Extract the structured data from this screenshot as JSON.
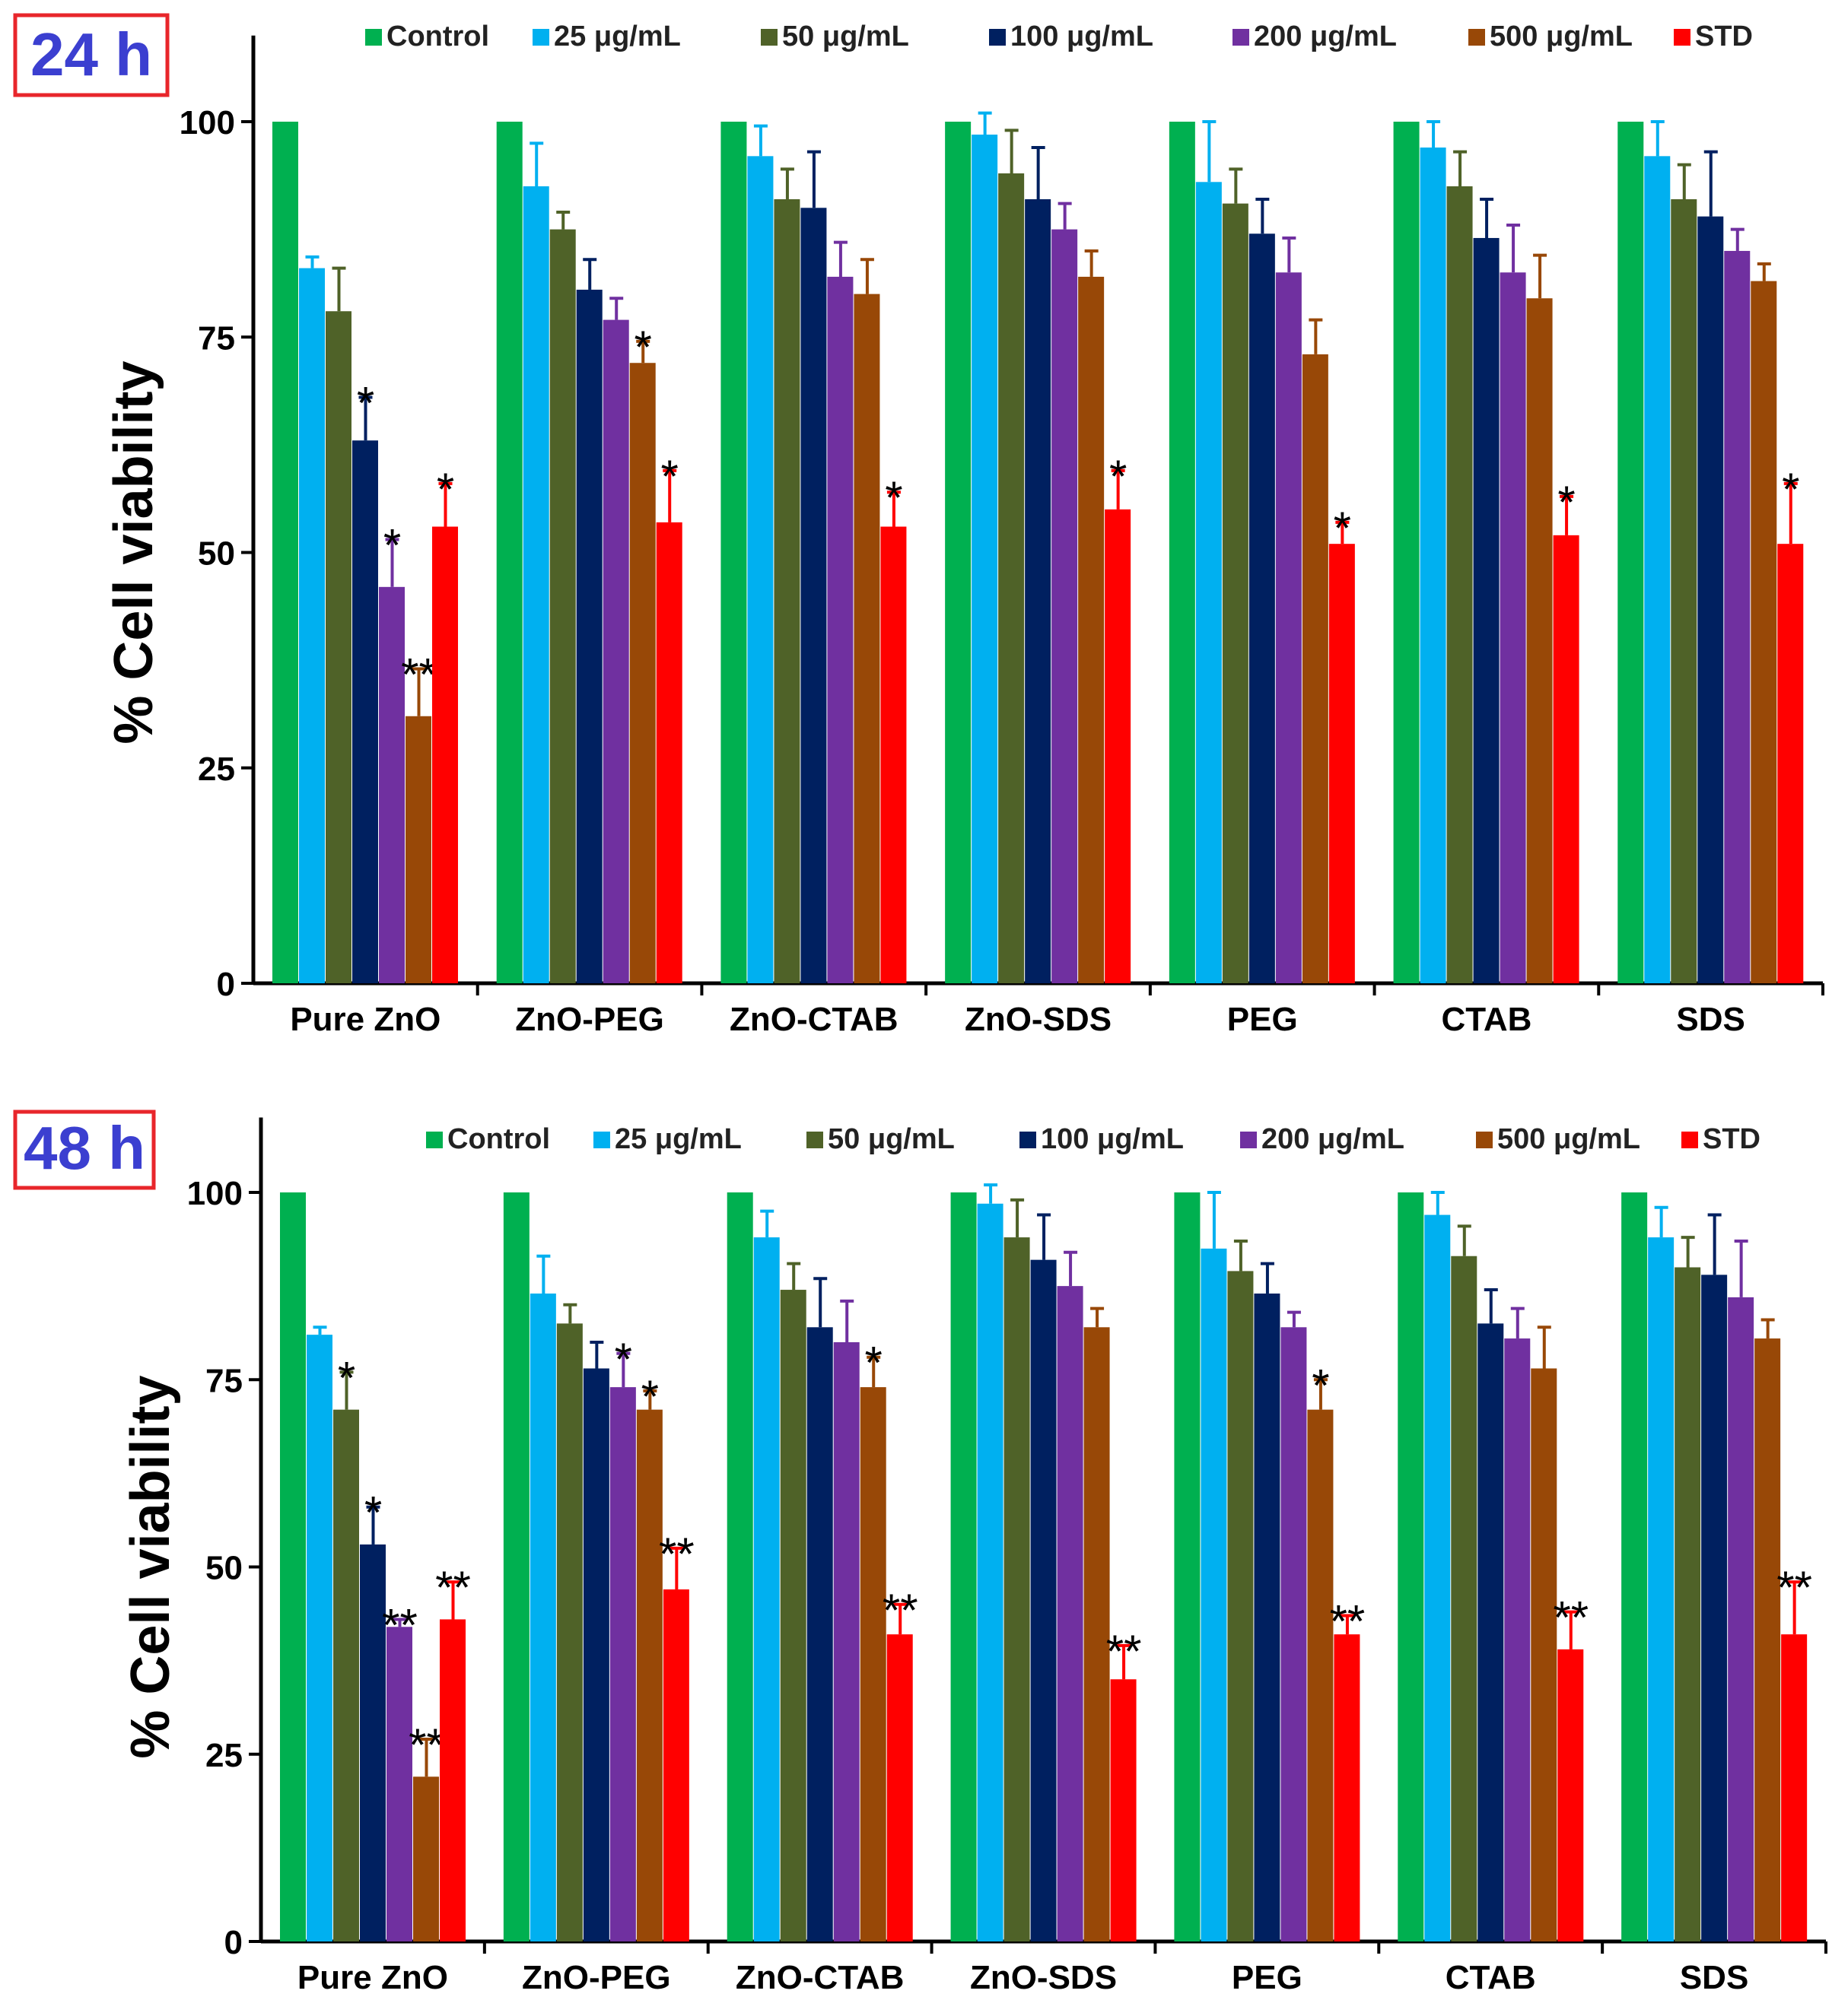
{
  "chart_data": [
    {
      "type": "bar",
      "label": "24 h",
      "ylabel": "% Cell viability",
      "ylim": [
        0,
        110
      ],
      "yticks": [
        0,
        25,
        50,
        75,
        100
      ],
      "categories": [
        "Pure ZnO",
        "ZnO-PEG",
        "ZnO-CTAB",
        "ZnO-SDS",
        "PEG",
        "CTAB",
        "SDS"
      ],
      "series": [
        {
          "name": "Control",
          "color": "#00b050",
          "values": [
            100,
            100,
            100,
            100,
            100,
            100,
            100
          ],
          "errors": [
            0,
            0,
            0,
            0,
            0,
            0,
            0
          ],
          "sig": [
            "",
            "",
            "",
            "",
            "",
            "",
            ""
          ]
        },
        {
          "name": "25 μg/mL",
          "color": "#00b0f0",
          "values": [
            83,
            92.5,
            96,
            98.5,
            93,
            97,
            96
          ],
          "errors": [
            1.3,
            5,
            3.5,
            2.5,
            7,
            3,
            4
          ],
          "sig": [
            "",
            "",
            "",
            "",
            "",
            "",
            ""
          ]
        },
        {
          "name": "50 μg/mL",
          "color": "#4f6228",
          "values": [
            78,
            87.5,
            91,
            94,
            90.5,
            92.5,
            91
          ],
          "errors": [
            5,
            2,
            3.5,
            5,
            4,
            4,
            4
          ],
          "sig": [
            "",
            "",
            "",
            "",
            "",
            "",
            ""
          ]
        },
        {
          "name": "100 μg/mL",
          "color": "#002060",
          "values": [
            63,
            80.5,
            90,
            91,
            87,
            86.5,
            89
          ],
          "errors": [
            5,
            3.5,
            6.5,
            6,
            4,
            4.5,
            7.5
          ],
          "sig": [
            "*",
            "",
            "",
            "",
            "",
            "",
            ""
          ]
        },
        {
          "name": "200 μg/mL",
          "color": "#7030a0",
          "values": [
            46,
            77,
            82,
            87.5,
            82.5,
            82.5,
            85
          ],
          "errors": [
            5.5,
            2.5,
            4,
            3,
            4,
            5.5,
            2.5
          ],
          "sig": [
            "*",
            "",
            "",
            "",
            "",
            "",
            ""
          ]
        },
        {
          "name": "500 μg/mL",
          "color": "#984807",
          "values": [
            31,
            72,
            80,
            82,
            73,
            79.5,
            81.5
          ],
          "errors": [
            5.5,
            2.5,
            4,
            3,
            4,
            5,
            2
          ],
          "sig": [
            "**",
            "*",
            "",
            "",
            "",
            "",
            ""
          ]
        },
        {
          "name": "STD",
          "color": "#ff0000",
          "values": [
            53,
            53.5,
            53,
            55,
            51,
            52,
            51
          ],
          "errors": [
            5,
            6,
            4,
            4.5,
            2.5,
            4.5,
            7
          ],
          "sig": [
            "*",
            "*",
            "*",
            "*",
            "*",
            "*",
            "*"
          ]
        }
      ]
    },
    {
      "type": "bar",
      "label": "48 h",
      "ylabel": "% Cell viability",
      "ylim": [
        0,
        110
      ],
      "yticks": [
        0,
        25,
        50,
        75,
        100
      ],
      "categories": [
        "Pure ZnO",
        "ZnO-PEG",
        "ZnO-CTAB",
        "ZnO-SDS",
        "PEG",
        "CTAB",
        "SDS"
      ],
      "series": [
        {
          "name": "Control",
          "color": "#00b050",
          "values": [
            100,
            100,
            100,
            100,
            100,
            100,
            100
          ],
          "errors": [
            0,
            0,
            0,
            0,
            0,
            0,
            0
          ],
          "sig": [
            "",
            "",
            "",
            "",
            "",
            "",
            ""
          ]
        },
        {
          "name": "25 μg/mL",
          "color": "#00b0f0",
          "values": [
            81,
            86.5,
            94,
            98.5,
            92.5,
            97,
            94
          ],
          "errors": [
            1,
            5,
            3.5,
            2.5,
            7.5,
            3,
            4
          ],
          "sig": [
            "",
            "",
            "",
            "",
            "",
            "",
            ""
          ]
        },
        {
          "name": "50 μg/mL",
          "color": "#4f6228",
          "values": [
            71,
            82.5,
            87,
            94,
            89.5,
            91.5,
            90
          ],
          "errors": [
            5,
            2.5,
            3.5,
            5,
            4,
            4,
            4
          ],
          "sig": [
            "*",
            "",
            "",
            "",
            "",
            "",
            ""
          ]
        },
        {
          "name": "100 μg/mL",
          "color": "#002060",
          "values": [
            53,
            76.5,
            82,
            91,
            86.5,
            82.5,
            89
          ],
          "errors": [
            5,
            3.5,
            6.5,
            6,
            4,
            4.5,
            8
          ],
          "sig": [
            "*",
            "",
            "",
            "",
            "",
            "",
            ""
          ]
        },
        {
          "name": "200 μg/mL",
          "color": "#7030a0",
          "values": [
            42,
            74,
            80,
            87.5,
            82,
            80.5,
            86
          ],
          "errors": [
            1,
            4.5,
            5.5,
            4.5,
            2,
            4,
            7.5
          ],
          "sig": [
            "**",
            "*",
            "",
            "",
            "",
            "",
            ""
          ]
        },
        {
          "name": "500 μg/mL",
          "color": "#984807",
          "values": [
            22,
            71,
            74,
            82,
            71,
            76.5,
            80.5
          ],
          "errors": [
            5,
            2.5,
            4,
            2.5,
            4,
            5.5,
            2.5
          ],
          "sig": [
            "**",
            "*",
            "*",
            "",
            "*",
            "",
            ""
          ]
        },
        {
          "name": "STD",
          "color": "#ff0000",
          "values": [
            43,
            47,
            41,
            35,
            41,
            39,
            41
          ],
          "errors": [
            5,
            5.5,
            4,
            4.5,
            2.5,
            5,
            7
          ],
          "sig": [
            "**",
            "**",
            "**",
            "**",
            "**",
            "**",
            "**"
          ]
        }
      ]
    }
  ]
}
